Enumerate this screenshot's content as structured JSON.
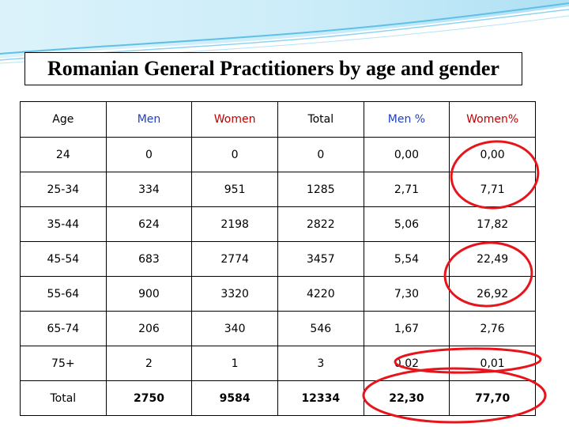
{
  "title": "Romanian General Practitioners by age and gender",
  "colors": {
    "men_header": "#1f3fbf",
    "women_header": "#c00000",
    "annotation_circle": "#e8141b",
    "swoosh": "#7fd0ee"
  },
  "table": {
    "headers": [
      "Age",
      "Men",
      "Women",
      "Total",
      "Men %",
      "Women%"
    ],
    "rows": [
      [
        "24",
        "0",
        "0",
        "0",
        "0,00",
        "0,00"
      ],
      [
        "25-34",
        "334",
        "951",
        "1285",
        "2,71",
        "7,71"
      ],
      [
        "35-44",
        "624",
        "2198",
        "2822",
        "5,06",
        "17,82"
      ],
      [
        "45-54",
        "683",
        "2774",
        "3457",
        "5,54",
        "22,49"
      ],
      [
        "55-64",
        "900",
        "3320",
        "4220",
        "7,30",
        "26,92"
      ],
      [
        "65-74",
        "206",
        "340",
        "546",
        "1,67",
        "2,76"
      ],
      [
        "75+",
        "2",
        "1",
        "3",
        "0,02",
        "0,01"
      ]
    ],
    "total": [
      "Total",
      "2750",
      "9584",
      "12334",
      "22,30",
      "77,70"
    ]
  }
}
